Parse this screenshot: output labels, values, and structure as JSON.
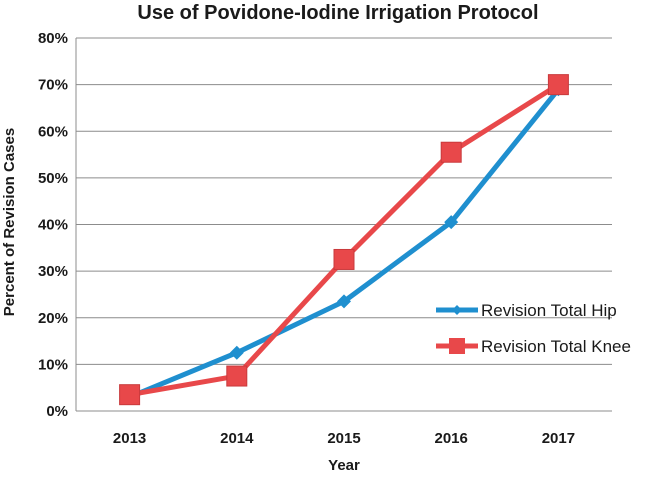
{
  "chart_data": {
    "type": "line",
    "title": "Use of Povidone-Iodine Irrigation Protocol",
    "xlabel": "Year",
    "ylabel": "Percent of Revision Cases",
    "categories": [
      "2013",
      "2014",
      "2015",
      "2016",
      "2017"
    ],
    "ylim": [
      0,
      80
    ],
    "ytick_step": 10,
    "ytick_labels": [
      "0%",
      "10%",
      "20%",
      "30%",
      "40%",
      "50%",
      "60%",
      "70%",
      "80%"
    ],
    "grid": true,
    "legend_position": "right",
    "series": [
      {
        "name": "Revision Total Hip",
        "values": [
          3,
          12.5,
          23.5,
          40.5,
          69
        ],
        "color": "#1f8fcf",
        "marker": "diamond"
      },
      {
        "name": "Revision Total Knee",
        "values": [
          3.5,
          7.5,
          32.5,
          55.5,
          70
        ],
        "color": "#e8484a",
        "marker": "square"
      }
    ]
  }
}
